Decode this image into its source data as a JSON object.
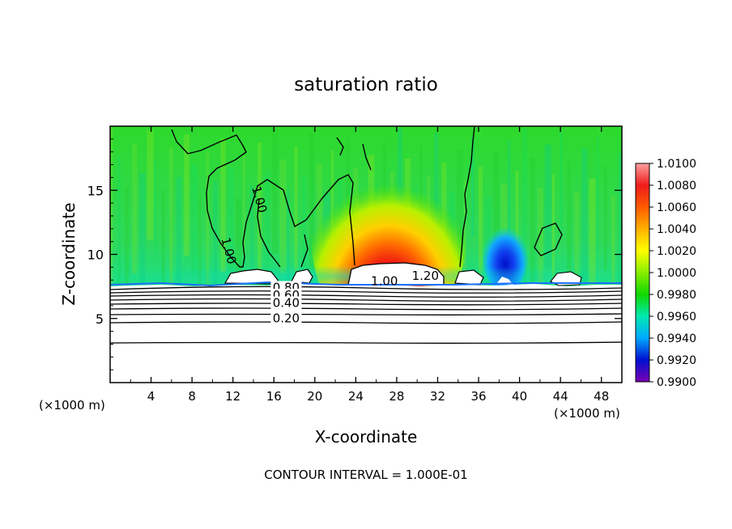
{
  "chart_data": {
    "type": "heatmap",
    "title": "saturation ratio",
    "xlabel": "X-coordinate",
    "ylabel": "Z-coordinate",
    "x_unit_left": "(×1000 m)",
    "x_unit_right": "(×1000 m)",
    "xlim": [
      0,
      50
    ],
    "ylim": [
      0,
      20
    ],
    "x_ticks": [
      "4",
      "8",
      "12",
      "16",
      "20",
      "24",
      "28",
      "32",
      "36",
      "40",
      "44",
      "48"
    ],
    "x_tick_values": [
      4,
      8,
      12,
      16,
      20,
      24,
      28,
      32,
      36,
      40,
      44,
      48
    ],
    "y_ticks": [
      "5",
      "10",
      "15"
    ],
    "y_tick_values": [
      5,
      10,
      15
    ],
    "colorbar": {
      "labels": [
        "1.0100",
        "1.0080",
        "1.0060",
        "1.0040",
        "1.0020",
        "1.0000",
        "0.9980",
        "0.9960",
        "0.9940",
        "0.9920",
        "0.9900"
      ],
      "values": [
        1.01,
        1.008,
        1.006,
        1.004,
        1.002,
        1.0,
        0.998,
        0.996,
        0.994,
        0.992,
        0.99
      ],
      "colors": [
        "#ff9a9a",
        "#ee1c1c",
        "#ff5a00",
        "#ff9a00",
        "#ffff00",
        "#a6f000",
        "#22d600",
        "#00e8a0",
        "#0090ff",
        "#0010d0",
        "#7a00b4"
      ]
    },
    "contour_labels": [
      {
        "text": "1.00",
        "x": 14.2,
        "z": 14.2
      },
      {
        "text": "1.00",
        "x": 11.2,
        "z": 10.2
      },
      {
        "text": "1.00",
        "x": 26.8,
        "z": 7.6
      },
      {
        "text": "1.20",
        "x": 30.8,
        "z": 8.0
      },
      {
        "text": "0.80",
        "x": 17.2,
        "z": 7.1
      },
      {
        "text": "0.60",
        "x": 17.2,
        "z": 6.5
      },
      {
        "text": "0.40",
        "x": 17.2,
        "z": 5.9
      },
      {
        "text": "0.20",
        "x": 17.2,
        "z": 4.7
      }
    ],
    "contour_interval_text": "CONTOUR INTERVAL = 1.000E-01"
  }
}
